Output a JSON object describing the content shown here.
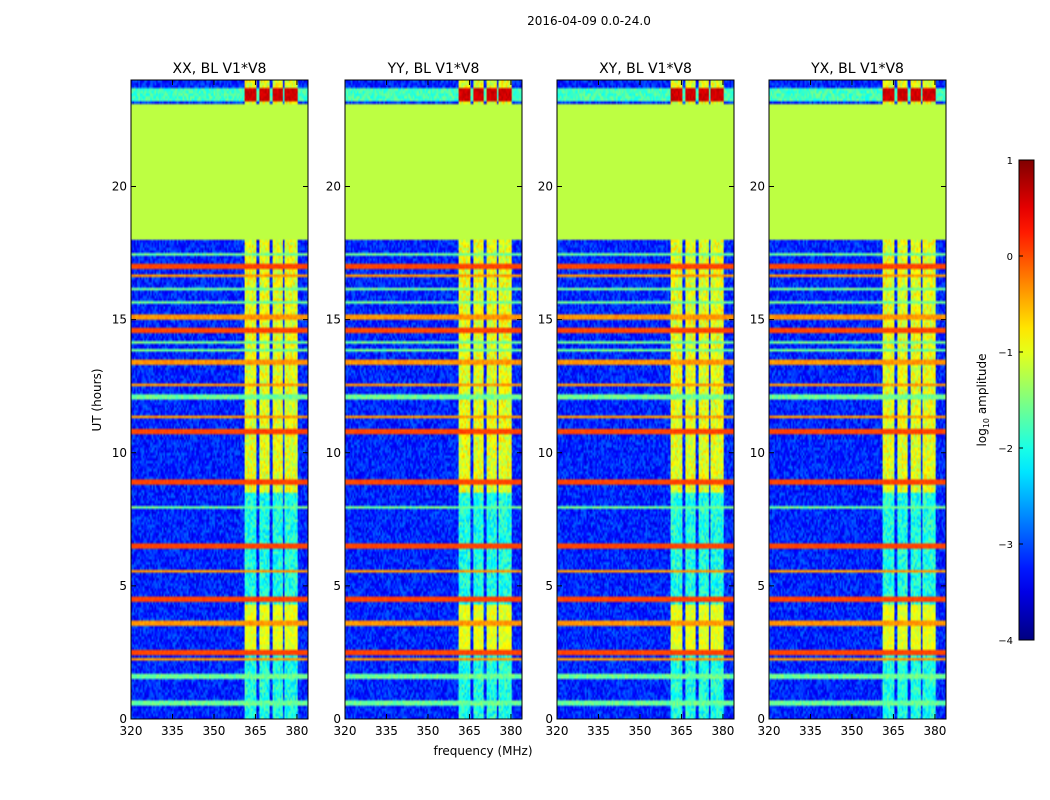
{
  "figure": {
    "suptitle": "2016-04-09 0.0-24.0"
  },
  "chart_data": {
    "type": "heatmap",
    "title": "2016-04-09 0.0-24.0",
    "xlabel": "frequency (MHz)",
    "ylabel": "UT (hours)",
    "xlim": [
      320,
      384
    ],
    "ylim": [
      0,
      24
    ],
    "xticks": [
      320,
      335,
      350,
      365,
      380
    ],
    "yticks": [
      0,
      5,
      10,
      15,
      20
    ],
    "colormap": "jet",
    "colorbar": {
      "label": "log",
      "label_sub": "10",
      "label_rest": " amplitude",
      "range": [
        -4,
        1
      ],
      "ticks": [
        1,
        0,
        -1,
        -2,
        -3,
        -4
      ]
    },
    "panels": [
      {
        "title": "XX, BL V1*V8",
        "polarization": "XX"
      },
      {
        "title": "YY, BL V1*V8",
        "polarization": "YY"
      },
      {
        "title": "XY, BL V1*V8",
        "polarization": "XY"
      },
      {
        "title": "YX, BL V1*V8",
        "polarization": "YX"
      }
    ],
    "features": {
      "flagged_block_hours": [
        18.0,
        23.1
      ],
      "flagged_block_value": -1.2,
      "background_value": -3.2,
      "rfi_band_mhz": [
        361,
        380
      ],
      "rfi_band_gaps_mhz": [
        365.8,
        370.5,
        375.2
      ],
      "rfi_band_value_strong": -1.0,
      "rfi_band_value_weak": -2.0,
      "strong_rfi_hours": [
        2.5,
        4.5,
        6.5,
        8.9,
        10.8,
        14.6,
        17.0
      ],
      "moderate_rfi_hours": [
        2.2,
        3.6,
        4.9,
        5.5,
        9.2,
        11.3,
        12.5,
        13.4,
        15.1,
        16.6
      ],
      "weak_rfi_hours": [
        0.6,
        1.3,
        1.6,
        3.0,
        7.5,
        8.0,
        11.8,
        12.1,
        13.8,
        14.2,
        15.7,
        16.1,
        17.5
      ]
    }
  }
}
